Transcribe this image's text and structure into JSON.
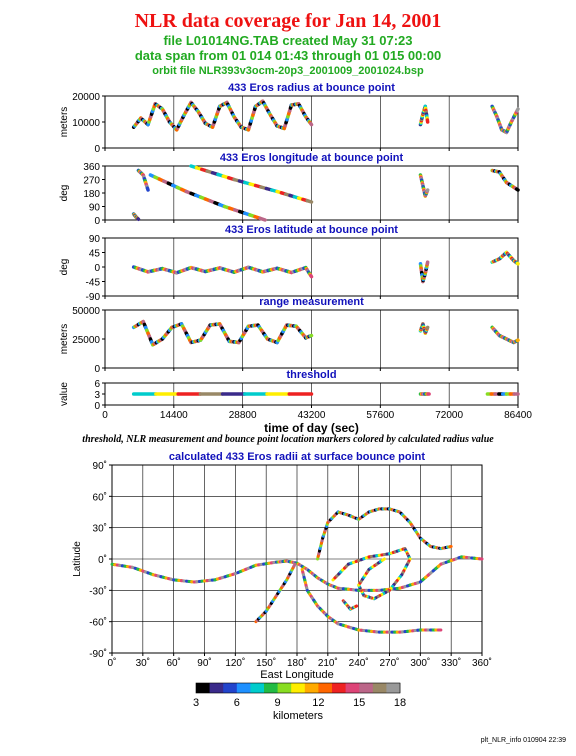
{
  "header": {
    "title": "NLR data coverage for Jan 14, 2001",
    "subtitle1": "file L01014NG.TAB created May 31 07:23",
    "subtitle2": "data span from 01 014 01:43 through 01 015 00:00",
    "subtitle3": "orbit file NLR393v3ocm-20p3_2001009_2001024.bsp",
    "caption": "threshold, NLR measurement and bounce point location markers colored by calculated radius value",
    "footer": "plt_NLR_info 010904 22:39"
  },
  "colors": {
    "title": "#ee1111",
    "subtitle": "#22aa22",
    "panel_title": "#1111bb"
  },
  "chart_data": [
    {
      "type": "scatter",
      "title": "433 Eros radius at bounce point",
      "ylabel": "meters",
      "xlim": [
        0,
        86400
      ],
      "ylim": [
        0,
        20000
      ],
      "yticks": [
        0,
        10000,
        20000
      ],
      "xticks": [
        0,
        14400,
        28800,
        43200,
        57600,
        72000,
        86400
      ],
      "segments": [
        {
          "x": [
            6000,
            7500,
            9000,
            10500,
            12000,
            13500,
            15000,
            16500,
            18000,
            19500,
            21000,
            22500,
            24000,
            25500,
            27000,
            28500,
            30000,
            31500,
            33000,
            34500,
            36000,
            37500,
            39000,
            40500,
            42000,
            43200
          ],
          "y": [
            8000,
            11500,
            9000,
            17000,
            15000,
            10000,
            7000,
            12500,
            17500,
            14000,
            9500,
            8000,
            16000,
            17500,
            12000,
            8000,
            7000,
            16000,
            18000,
            13000,
            8500,
            7500,
            16500,
            17000,
            12000,
            9000
          ]
        },
        {
          "x": [
            66000,
            66500,
            67000,
            67500
          ],
          "y": [
            9000,
            13000,
            16000,
            10000
          ]
        },
        {
          "x": [
            81000,
            82000,
            83000,
            84000,
            85000,
            86400
          ],
          "y": [
            16000,
            12000,
            7000,
            6000,
            10000,
            15000
          ]
        }
      ]
    },
    {
      "type": "scatter",
      "title": "433 Eros longitude at bounce point",
      "ylabel": "deg",
      "xlim": [
        0,
        86400
      ],
      "ylim": [
        0,
        360
      ],
      "yticks": [
        0,
        90,
        180,
        270,
        360
      ],
      "xticks": [
        0,
        14400,
        28800,
        43200,
        57600,
        72000,
        86400
      ],
      "segments": [
        {
          "x": [
            6000,
            6500,
            7000
          ],
          "y": [
            40,
            20,
            5
          ]
        },
        {
          "x": [
            7000,
            8000,
            9000
          ],
          "y": [
            330,
            300,
            200
          ]
        },
        {
          "x": [
            9500,
            17000,
            25000,
            33500
          ],
          "y": [
            300,
            190,
            90,
            0
          ]
        },
        {
          "x": [
            18000,
            27000,
            36000,
            43200
          ],
          "y": [
            360,
            270,
            190,
            120
          ]
        },
        {
          "x": [
            66000,
            66500,
            67000,
            67500
          ],
          "y": [
            300,
            230,
            160,
            200
          ]
        },
        {
          "x": [
            81000,
            82500,
            84000,
            86400
          ],
          "y": [
            330,
            320,
            250,
            200
          ]
        }
      ]
    },
    {
      "type": "scatter",
      "title": "433 Eros latitude at bounce point",
      "ylabel": "deg",
      "xlim": [
        0,
        86400
      ],
      "ylim": [
        -90,
        90
      ],
      "yticks": [
        -90,
        -45,
        0,
        45,
        90
      ],
      "xticks": [
        0,
        14400,
        28800,
        43200,
        57600,
        72000,
        86400
      ],
      "segments": [
        {
          "x": [
            6000,
            9000,
            12000,
            15000,
            18000,
            21000,
            24000,
            27000,
            30000,
            33000,
            36000,
            39000,
            42000,
            43200
          ],
          "y": [
            0,
            -15,
            -5,
            -18,
            -2,
            -14,
            -3,
            -16,
            -1,
            -15,
            -4,
            -17,
            -2,
            -30
          ]
        },
        {
          "x": [
            66000,
            66500,
            67000,
            67500
          ],
          "y": [
            10,
            -45,
            -20,
            15
          ]
        },
        {
          "x": [
            81000,
            82500,
            84000,
            85500,
            86400
          ],
          "y": [
            15,
            25,
            45,
            20,
            10
          ]
        }
      ]
    },
    {
      "type": "scatter",
      "title": "range measurement",
      "ylabel": "meters",
      "xlim": [
        0,
        86400
      ],
      "ylim": [
        0,
        50000
      ],
      "yticks": [
        0,
        25000,
        50000
      ],
      "xticks": [
        0,
        14400,
        28800,
        43200,
        57600,
        72000,
        86400
      ],
      "segments": [
        {
          "x": [
            6000,
            8000,
            10000,
            12000,
            14000,
            16000,
            18000,
            20000,
            22000,
            24000,
            26000,
            28000,
            30000,
            32000,
            34000,
            36000,
            38000,
            40000,
            42000,
            43200
          ],
          "y": [
            35000,
            40000,
            20000,
            25000,
            35000,
            38000,
            22000,
            24000,
            37000,
            38000,
            23000,
            22000,
            36000,
            37000,
            25000,
            22000,
            37000,
            36000,
            26000,
            28000
          ]
        },
        {
          "x": [
            66000,
            66500,
            67000,
            67500
          ],
          "y": [
            32000,
            38000,
            30000,
            35000
          ]
        },
        {
          "x": [
            81000,
            82500,
            84000,
            85500,
            86400
          ],
          "y": [
            35000,
            28000,
            25000,
            22000,
            24000
          ]
        }
      ]
    },
    {
      "type": "scatter",
      "title": "threshold",
      "ylabel": "value",
      "xlabel": "time of day (sec)",
      "xlim": [
        0,
        86400
      ],
      "ylim": [
        0,
        6
      ],
      "yticks": [
        0,
        3,
        6
      ],
      "xticks": [
        0,
        14400,
        28800,
        43200,
        57600,
        72000,
        86400
      ],
      "segments": [
        {
          "x": [
            6000,
            43200
          ],
          "y": [
            3,
            3
          ]
        },
        {
          "x": [
            66000,
            67800
          ],
          "y": [
            3,
            3
          ]
        },
        {
          "x": [
            80000,
            86400
          ],
          "y": [
            3,
            3
          ]
        }
      ]
    },
    {
      "type": "scatter",
      "title": "calculated 433 Eros radii at surface bounce point",
      "xlabel": "East Longitude",
      "ylabel": "Latitude",
      "xlim": [
        0,
        360
      ],
      "ylim": [
        -90,
        90
      ],
      "xticks": [
        0,
        30,
        60,
        90,
        120,
        150,
        180,
        210,
        240,
        270,
        300,
        330,
        360
      ],
      "yticks": [
        -90,
        -60,
        -30,
        0,
        30,
        60,
        90
      ],
      "xtick_labels": [
        "0˚",
        "30˚",
        "60˚",
        "90˚",
        "120˚",
        "150˚",
        "180˚",
        "210˚",
        "240˚",
        "270˚",
        "300˚",
        "330˚",
        "360˚"
      ],
      "ytick_labels": [
        "-90˚",
        "-60˚",
        "-30˚",
        "0˚",
        "30˚",
        "60˚",
        "90˚"
      ],
      "segments": [
        {
          "x": [
            0,
            20,
            40,
            60,
            80,
            100,
            120,
            140,
            160,
            170,
            180,
            190,
            200,
            210,
            220,
            240,
            260,
            280,
            300,
            320,
            340,
            360
          ],
          "y": [
            -5,
            -8,
            -15,
            -20,
            -22,
            -20,
            -14,
            -6,
            -3,
            -2,
            -4,
            -10,
            -18,
            -24,
            -28,
            -30,
            -30,
            -28,
            -22,
            -5,
            2,
            0
          ]
        },
        {
          "x": [
            200,
            205,
            210,
            220,
            230,
            240,
            250,
            260,
            270,
            280,
            290,
            300,
            310,
            320,
            330
          ],
          "y": [
            0,
            20,
            35,
            45,
            42,
            38,
            45,
            48,
            48,
            45,
            35,
            20,
            12,
            10,
            12
          ]
        },
        {
          "x": [
            215,
            230,
            250,
            270,
            285,
            290,
            282,
            270,
            255,
            245,
            240,
            250,
            265
          ],
          "y": [
            -20,
            -5,
            2,
            5,
            10,
            0,
            -15,
            -30,
            -38,
            -35,
            -25,
            -10,
            0
          ]
        },
        {
          "x": [
            185,
            190,
            200,
            210,
            220,
            240,
            260,
            280,
            300,
            320
          ],
          "y": [
            -10,
            -30,
            -45,
            -55,
            -62,
            -68,
            -70,
            -70,
            -68,
            -68
          ]
        },
        {
          "x": [
            140,
            150,
            160,
            170,
            178
          ],
          "y": [
            -60,
            -50,
            -35,
            -20,
            -5
          ]
        },
        {
          "x": [
            225,
            232,
            238
          ],
          "y": [
            -40,
            -48,
            -45
          ]
        }
      ]
    }
  ],
  "colorbar": {
    "label": "kilometers",
    "min": 3,
    "max": 18,
    "ticks": [
      "3",
      "6",
      "9",
      "12",
      "15",
      "18"
    ]
  }
}
